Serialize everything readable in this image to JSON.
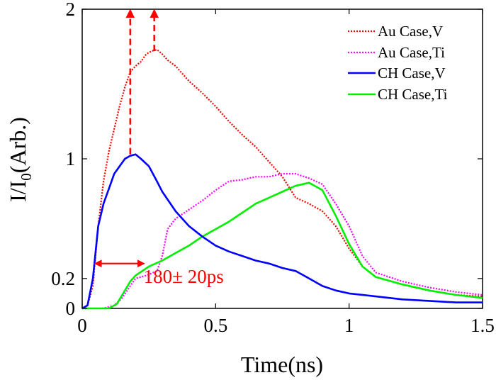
{
  "chart_data": {
    "type": "line",
    "xlabel": "Time(ns)",
    "ylabel_main": "I/I",
    "ylabel_sub": "0",
    "ylabel_tail": "(Arb.)",
    "xlim": [
      0,
      1.5
    ],
    "ylim": [
      0,
      2
    ],
    "xticks": [
      0,
      0.5,
      1,
      1.5
    ],
    "xtick_labels": [
      "0",
      "0.5",
      "1",
      "1.5"
    ],
    "yticks": [
      0,
      0.2,
      1,
      2
    ],
    "ytick_labels": [
      "0",
      "0.2",
      "1",
      "2"
    ],
    "grid": false,
    "legend_position": "top-right",
    "series": [
      {
        "name": "Au Case,V",
        "color": "#ff0000",
        "style": "dotted",
        "x": [
          0,
          0.02,
          0.04,
          0.06,
          0.08,
          0.1,
          0.12,
          0.14,
          0.16,
          0.18,
          0.2,
          0.22,
          0.24,
          0.26,
          0.28,
          0.3,
          0.32,
          0.35,
          0.38,
          0.4,
          0.45,
          0.5,
          0.55,
          0.6,
          0.65,
          0.7,
          0.75,
          0.8,
          0.85,
          0.9,
          0.95,
          1.0,
          1.05,
          1.1,
          1.2,
          1.3,
          1.4,
          1.5
        ],
        "values": [
          0.0,
          0.02,
          0.15,
          0.55,
          0.85,
          1.05,
          1.2,
          1.35,
          1.48,
          1.58,
          1.62,
          1.65,
          1.7,
          1.72,
          1.73,
          1.7,
          1.66,
          1.62,
          1.56,
          1.52,
          1.44,
          1.35,
          1.25,
          1.16,
          1.08,
          0.98,
          0.88,
          0.74,
          0.7,
          0.65,
          0.55,
          0.4,
          0.28,
          0.21,
          0.16,
          0.12,
          0.09,
          0.08
        ]
      },
      {
        "name": "Au Case,Ti",
        "color": "#ff00ff",
        "style": "dotted",
        "x": [
          0,
          0.08,
          0.12,
          0.15,
          0.18,
          0.2,
          0.24,
          0.28,
          0.3,
          0.32,
          0.35,
          0.4,
          0.45,
          0.5,
          0.55,
          0.6,
          0.65,
          0.7,
          0.75,
          0.8,
          0.85,
          0.9,
          0.95,
          1.0,
          1.05,
          1.1,
          1.2,
          1.3,
          1.4,
          1.5
        ],
        "values": [
          0.0,
          0.0,
          0.02,
          0.07,
          0.15,
          0.2,
          0.22,
          0.25,
          0.35,
          0.53,
          0.6,
          0.66,
          0.72,
          0.79,
          0.85,
          0.86,
          0.88,
          0.88,
          0.9,
          0.9,
          0.87,
          0.83,
          0.7,
          0.55,
          0.35,
          0.24,
          0.18,
          0.14,
          0.11,
          0.09
        ]
      },
      {
        "name": "CH Case,V",
        "color": "#0000ff",
        "style": "solid",
        "x": [
          0,
          0.02,
          0.04,
          0.06,
          0.08,
          0.1,
          0.12,
          0.14,
          0.16,
          0.18,
          0.2,
          0.22,
          0.25,
          0.28,
          0.3,
          0.35,
          0.4,
          0.45,
          0.5,
          0.55,
          0.6,
          0.65,
          0.7,
          0.75,
          0.8,
          0.85,
          0.9,
          0.95,
          1.0,
          1.1,
          1.2,
          1.3,
          1.4,
          1.5
        ],
        "values": [
          0.0,
          0.02,
          0.2,
          0.55,
          0.7,
          0.8,
          0.9,
          0.95,
          1.0,
          1.02,
          1.03,
          1.0,
          0.95,
          0.85,
          0.78,
          0.65,
          0.55,
          0.48,
          0.42,
          0.38,
          0.35,
          0.32,
          0.3,
          0.27,
          0.25,
          0.2,
          0.15,
          0.12,
          0.1,
          0.08,
          0.06,
          0.05,
          0.04,
          0.04
        ]
      },
      {
        "name": "CH Case,Ti",
        "color": "#00ee00",
        "style": "solid",
        "x": [
          0,
          0.1,
          0.13,
          0.16,
          0.18,
          0.2,
          0.25,
          0.3,
          0.35,
          0.4,
          0.45,
          0.5,
          0.55,
          0.6,
          0.65,
          0.7,
          0.75,
          0.8,
          0.85,
          0.9,
          0.95,
          1.0,
          1.05,
          1.1,
          1.2,
          1.3,
          1.4,
          1.5
        ],
        "values": [
          0.0,
          0.0,
          0.03,
          0.12,
          0.18,
          0.22,
          0.28,
          0.32,
          0.37,
          0.42,
          0.48,
          0.53,
          0.58,
          0.64,
          0.7,
          0.74,
          0.78,
          0.82,
          0.84,
          0.79,
          0.62,
          0.43,
          0.28,
          0.21,
          0.16,
          0.12,
          0.09,
          0.07
        ]
      }
    ],
    "annotations": [
      {
        "type": "arrow-up",
        "x": 0.18,
        "y_from": 1.03,
        "y_to": 2.0,
        "color": "#ff0000",
        "dashed": true
      },
      {
        "type": "arrow-up",
        "x": 0.27,
        "y_from": 1.72,
        "y_to": 2.0,
        "color": "#ff0000",
        "dashed": true
      },
      {
        "type": "double-arrow",
        "x_from": 0.05,
        "x_to": 0.23,
        "y": 0.3,
        "color": "#ff0000"
      },
      {
        "type": "text",
        "text": "180± 20ps",
        "x": 0.23,
        "y": 0.17,
        "color": "#ff0000"
      }
    ]
  }
}
